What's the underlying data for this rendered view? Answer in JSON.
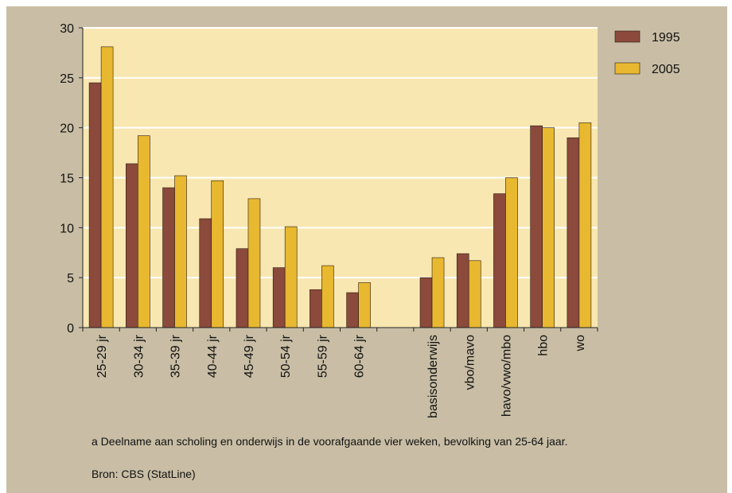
{
  "chart_data": {
    "type": "bar",
    "categories": [
      "25-29 jr",
      "30-34 jr",
      "35-39 jr",
      "40-44 jr",
      "45-49 jr",
      "50-54 jr",
      "55-59 jr",
      "60-64 jr",
      "",
      "basisonderwijs",
      "vbo/mavo",
      "havo/vwo/mbo",
      "hbo",
      "wo"
    ],
    "series": [
      {
        "name": "1995",
        "color": "#8b4a3c",
        "values": [
          24.5,
          16.4,
          14.0,
          10.9,
          7.9,
          6.0,
          3.8,
          3.5,
          null,
          5.0,
          7.4,
          13.4,
          20.2,
          19.0
        ]
      },
      {
        "name": "2005",
        "color": "#e8b830",
        "values": [
          28.1,
          19.2,
          15.2,
          14.7,
          12.9,
          10.1,
          6.2,
          4.5,
          null,
          7.0,
          6.7,
          15.0,
          20.0,
          20.5
        ]
      }
    ],
    "ylim": [
      0,
      30
    ],
    "yticks": [
      0,
      5,
      10,
      15,
      20,
      25,
      30
    ],
    "grid": true,
    "legend_position": "top-right",
    "title": "",
    "xlabel": "",
    "ylabel": ""
  },
  "colors": {
    "background": "#c9bea5",
    "plot_area": "#f8e7b0",
    "gridline": "#ffffff"
  },
  "footnote": "a   Deelname aan scholing en onderwijs in de voorafgaande vier weken, bevolking van 25-64 jaar.",
  "source": "Bron: CBS (StatLine)"
}
